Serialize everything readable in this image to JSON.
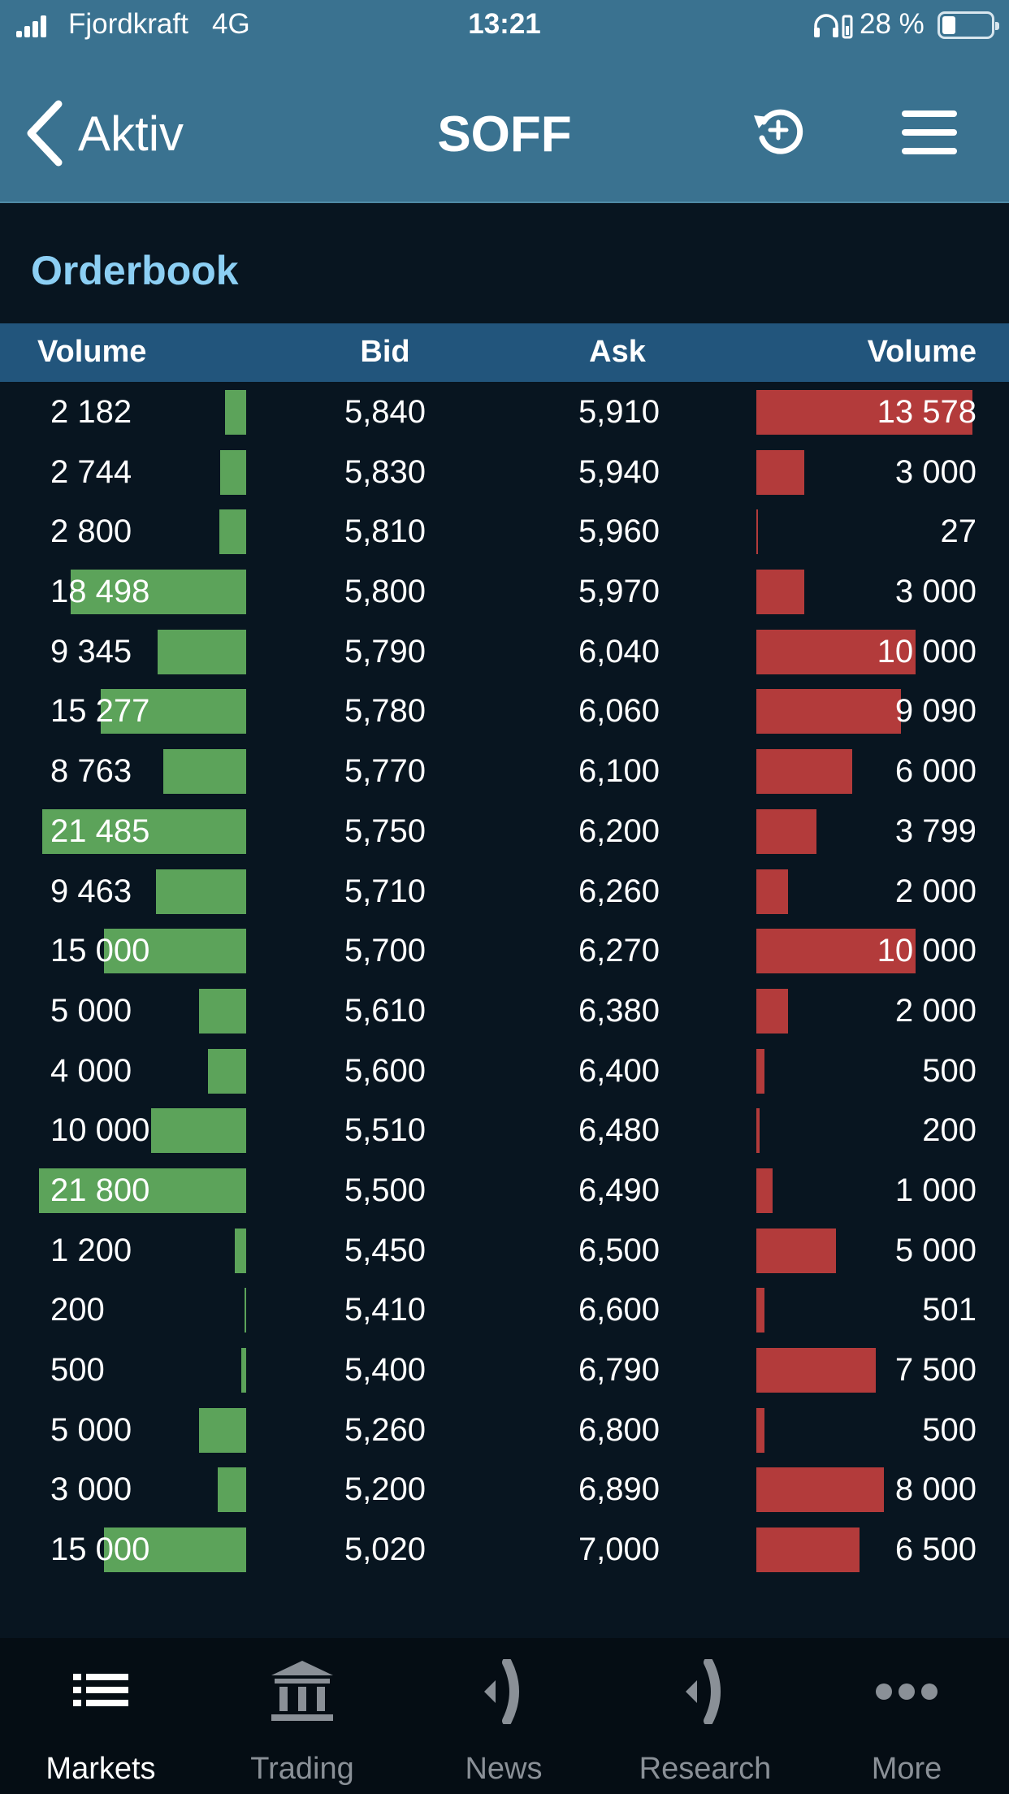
{
  "status_bar": {
    "carrier": "Fjordkraft",
    "network": "4G",
    "time": "13:21",
    "battery_label": "28 %",
    "battery_level": 0.28
  },
  "nav": {
    "back_label": "Aktiv",
    "title": "SOFF"
  },
  "orderbook": {
    "section_title": "Orderbook",
    "headers": {
      "bid_volume": "Volume",
      "bid": "Bid",
      "ask": "Ask",
      "ask_volume": "Volume"
    },
    "colors": {
      "bid_bar": "#5ca35a",
      "ask_bar": "#b33b3b",
      "header_bg": "#22557c",
      "title": "#8ccff4"
    },
    "rows": [
      {
        "bid_volume": "2 182",
        "bid": "5,840",
        "ask": "5,910",
        "ask_volume": "13 578",
        "bid_qty": 2182,
        "ask_qty": 13578
      },
      {
        "bid_volume": "2 744",
        "bid": "5,830",
        "ask": "5,940",
        "ask_volume": "3 000",
        "bid_qty": 2744,
        "ask_qty": 3000
      },
      {
        "bid_volume": "2 800",
        "bid": "5,810",
        "ask": "5,960",
        "ask_volume": "27",
        "bid_qty": 2800,
        "ask_qty": 27
      },
      {
        "bid_volume": "18 498",
        "bid": "5,800",
        "ask": "5,970",
        "ask_volume": "3 000",
        "bid_qty": 18498,
        "ask_qty": 3000
      },
      {
        "bid_volume": "9 345",
        "bid": "5,790",
        "ask": "6,040",
        "ask_volume": "10 000",
        "bid_qty": 9345,
        "ask_qty": 10000
      },
      {
        "bid_volume": "15 277",
        "bid": "5,780",
        "ask": "6,060",
        "ask_volume": "9 090",
        "bid_qty": 15277,
        "ask_qty": 9090
      },
      {
        "bid_volume": "8 763",
        "bid": "5,770",
        "ask": "6,100",
        "ask_volume": "6 000",
        "bid_qty": 8763,
        "ask_qty": 6000
      },
      {
        "bid_volume": "21 485",
        "bid": "5,750",
        "ask": "6,200",
        "ask_volume": "3 799",
        "bid_qty": 21485,
        "ask_qty": 3799
      },
      {
        "bid_volume": "9 463",
        "bid": "5,710",
        "ask": "6,260",
        "ask_volume": "2 000",
        "bid_qty": 9463,
        "ask_qty": 2000
      },
      {
        "bid_volume": "15 000",
        "bid": "5,700",
        "ask": "6,270",
        "ask_volume": "10 000",
        "bid_qty": 15000,
        "ask_qty": 10000
      },
      {
        "bid_volume": "5 000",
        "bid": "5,610",
        "ask": "6,380",
        "ask_volume": "2 000",
        "bid_qty": 5000,
        "ask_qty": 2000
      },
      {
        "bid_volume": "4 000",
        "bid": "5,600",
        "ask": "6,400",
        "ask_volume": "500",
        "bid_qty": 4000,
        "ask_qty": 500
      },
      {
        "bid_volume": "10 000",
        "bid": "5,510",
        "ask": "6,480",
        "ask_volume": "200",
        "bid_qty": 10000,
        "ask_qty": 200
      },
      {
        "bid_volume": "21 800",
        "bid": "5,500",
        "ask": "6,490",
        "ask_volume": "1 000",
        "bid_qty": 21800,
        "ask_qty": 1000
      },
      {
        "bid_volume": "1 200",
        "bid": "5,450",
        "ask": "6,500",
        "ask_volume": "5 000",
        "bid_qty": 1200,
        "ask_qty": 5000
      },
      {
        "bid_volume": "200",
        "bid": "5,410",
        "ask": "6,600",
        "ask_volume": "501",
        "bid_qty": 200,
        "ask_qty": 501
      },
      {
        "bid_volume": "500",
        "bid": "5,400",
        "ask": "6,790",
        "ask_volume": "7 500",
        "bid_qty": 500,
        "ask_qty": 7500
      },
      {
        "bid_volume": "5 000",
        "bid": "5,260",
        "ask": "6,800",
        "ask_volume": "500",
        "bid_qty": 5000,
        "ask_qty": 500
      },
      {
        "bid_volume": "3 000",
        "bid": "5,200",
        "ask": "6,890",
        "ask_volume": "8 000",
        "bid_qty": 3000,
        "ask_qty": 8000
      },
      {
        "bid_volume": "15 000",
        "bid": "5,020",
        "ask": "7,000",
        "ask_volume": "6 500",
        "bid_qty": 15000,
        "ask_qty": 6500
      }
    ]
  },
  "tabs": [
    {
      "label": "Markets",
      "icon": "list-icon",
      "active": true
    },
    {
      "label": "Trading",
      "icon": "bank-icon",
      "active": false
    },
    {
      "label": "News",
      "icon": "speaker-icon",
      "active": false
    },
    {
      "label": "Research",
      "icon": "speaker-icon",
      "active": false
    },
    {
      "label": "More",
      "icon": "more-icon",
      "active": false
    }
  ]
}
